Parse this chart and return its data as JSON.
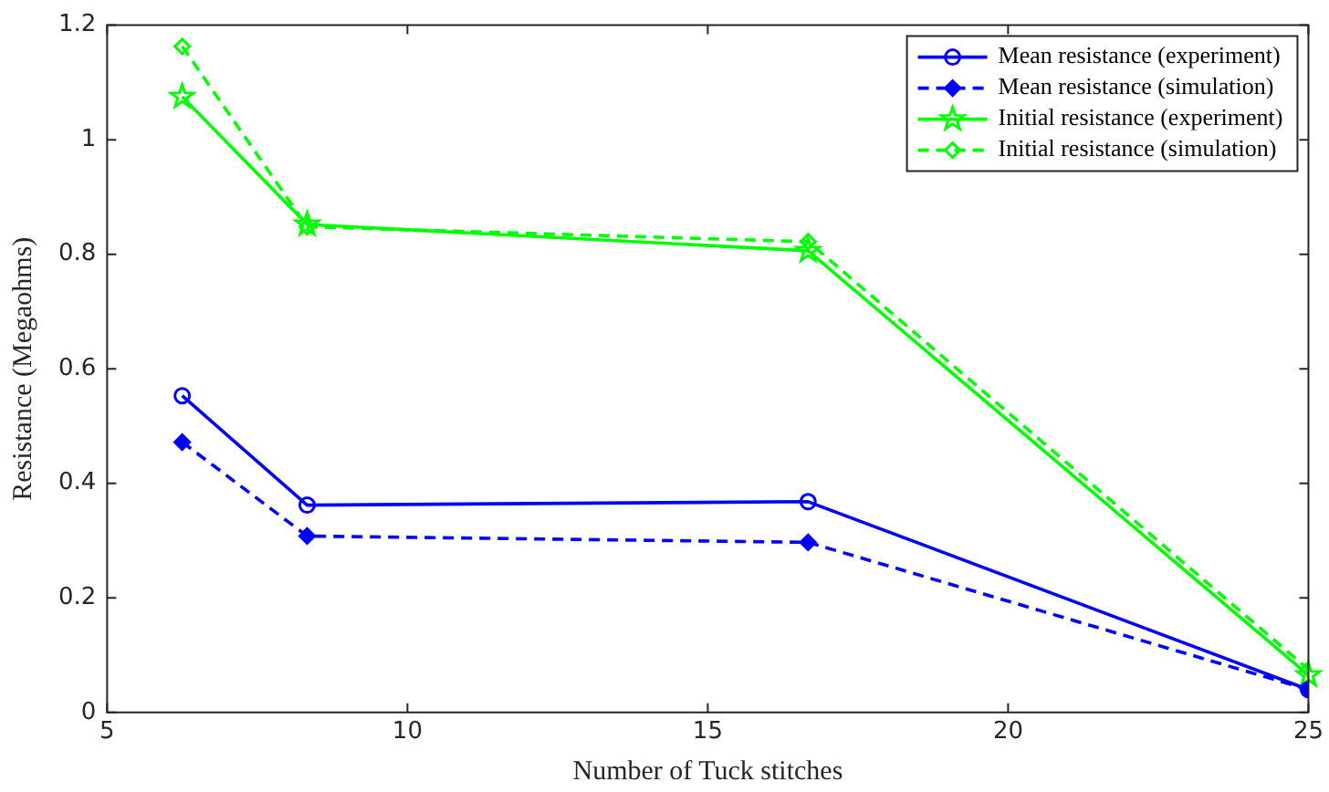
{
  "chart_data": {
    "type": "line",
    "xlabel": "Number of Tuck stitches",
    "ylabel": "Resistance (Megaohms)",
    "x": [
      6.25,
      8.33,
      16.67,
      25
    ],
    "series": [
      {
        "name": "Mean resistance (experiment)",
        "color": "#0000ff",
        "marker": "circle",
        "line_style": "solid",
        "values": [
          0.553,
          0.362,
          0.368,
          0.04
        ]
      },
      {
        "name": "Mean resistance (simulation)",
        "color": "#0000ff",
        "marker": "diamond",
        "line_style": "dashed",
        "values": [
          0.472,
          0.308,
          0.297,
          0.04
        ]
      },
      {
        "name": "Initial resistance (experiment)",
        "color": "#00ff00",
        "marker": "star",
        "line_style": "solid",
        "values": [
          1.075,
          0.852,
          0.806,
          0.065
        ]
      },
      {
        "name": "Initial resistance (simulation)",
        "color": "#00ff00",
        "marker": "diamond",
        "line_style": "dashed",
        "values": [
          1.163,
          0.848,
          0.822,
          0.075
        ]
      }
    ],
    "xlim": [
      5,
      25
    ],
    "xticks": [
      5,
      10,
      15,
      20,
      25
    ],
    "ylim": [
      0,
      1.2
    ],
    "yticks": [
      0,
      0.2,
      0.4,
      0.6,
      0.8,
      1,
      1.2
    ],
    "grid": false,
    "legend": "top right"
  }
}
